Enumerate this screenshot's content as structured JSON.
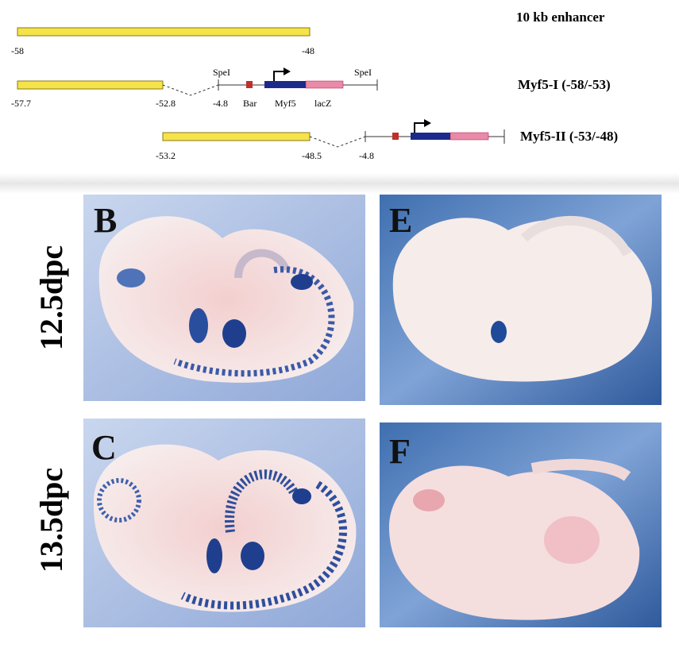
{
  "diagram": {
    "enhancer": {
      "title": "10 kb enhancer",
      "start": "-58",
      "end": "-48"
    },
    "myf5_1": {
      "title": "Myf5-I (-58/-53)",
      "start": "-57.7",
      "end": "-52.8",
      "promoter": "-4.8",
      "site_left": "SpeI",
      "site_right": "SpeI",
      "bar": "Bar",
      "gene": "Myf5",
      "reporter": "lacZ"
    },
    "myf5_2": {
      "title": "Myf5-II (-53/-48)",
      "start": "-53.2",
      "end": "-48.5",
      "promoter": "-4.8"
    }
  },
  "panels": {
    "row_labels": [
      "12.5dpc",
      "13.5dpc"
    ],
    "letters": [
      "B",
      "E",
      "C",
      "F"
    ]
  }
}
